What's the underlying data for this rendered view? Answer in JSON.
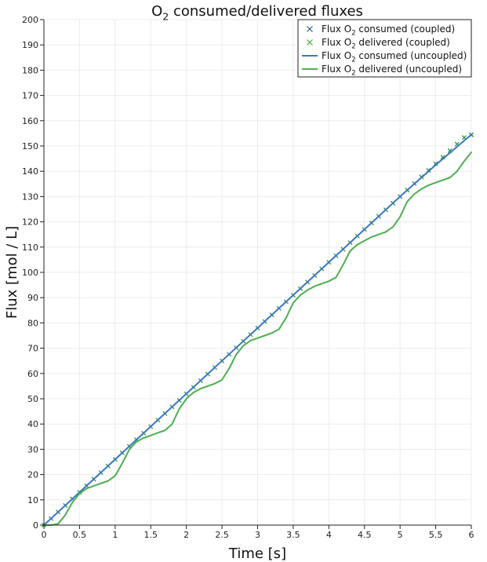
{
  "chart_data": {
    "type": "line",
    "title": "O<sub>2</sub> consumed/delivered fluxes",
    "title_parts": {
      "pre": "O",
      "sub": "2",
      "post": " consumed/delivered fluxes"
    },
    "xlabel": "Time [s]",
    "ylabel": "Flux [mol / L]",
    "xlim": [
      0,
      6
    ],
    "ylim": [
      0,
      200
    ],
    "xticks": [
      0,
      0.5,
      1,
      1.5,
      2,
      2.5,
      3,
      3.5,
      4,
      4.5,
      5,
      5.5,
      6
    ],
    "xtick_labels": [
      "0",
      "0.5",
      "1",
      "1.5",
      "2",
      "2.5",
      "3",
      "3.5",
      "4",
      "4.5",
      "5",
      "5.5",
      "6"
    ],
    "yticks": [
      0,
      10,
      20,
      30,
      40,
      50,
      60,
      70,
      80,
      90,
      100,
      110,
      120,
      130,
      140,
      150,
      160,
      170,
      180,
      190,
      200
    ],
    "ytick_labels": [
      "0",
      "10",
      "20",
      "30",
      "40",
      "50",
      "60",
      "70",
      "80",
      "90",
      "100",
      "110",
      "120",
      "130",
      "140",
      "150",
      "160",
      "170",
      "180",
      "190",
      "200"
    ],
    "grid": true,
    "legend_position": "top-right",
    "series": [
      {
        "name": "Flux O2 consumed (coupled)",
        "name_parts": {
          "pre": "Flux O",
          "sub": "2",
          "post": " consumed (coupled)"
        },
        "style": "marker-x",
        "color": "#1f4e79",
        "x": [
          0,
          0.1,
          0.2,
          0.3,
          0.4,
          0.5,
          0.6,
          0.7,
          0.8,
          0.9,
          1.0,
          1.1,
          1.2,
          1.3,
          1.4,
          1.5,
          1.6,
          1.7,
          1.8,
          1.9,
          2.0,
          2.1,
          2.2,
          2.3,
          2.4,
          2.5,
          2.6,
          2.7,
          2.8,
          2.9,
          3.0,
          3.1,
          3.2,
          3.3,
          3.4,
          3.5,
          3.6,
          3.7,
          3.8,
          3.9,
          4.0,
          4.1,
          4.2,
          4.3,
          4.4,
          4.5,
          4.6,
          4.7,
          4.8,
          4.9,
          5.0,
          5.1,
          5.2,
          5.3,
          5.4,
          5.5,
          5.6,
          5.7,
          5.8,
          5.9,
          6.0
        ],
        "y": [
          0,
          2.6,
          5.2,
          7.8,
          10.4,
          13.0,
          15.6,
          18.2,
          20.8,
          23.4,
          26.0,
          28.6,
          31.2,
          33.8,
          36.4,
          39.0,
          41.6,
          44.2,
          46.8,
          49.4,
          52.0,
          54.6,
          57.2,
          59.8,
          62.4,
          65.0,
          67.6,
          70.2,
          72.8,
          75.4,
          78.0,
          80.6,
          83.2,
          85.8,
          88.4,
          91.0,
          93.6,
          96.2,
          98.8,
          101.4,
          104.0,
          106.6,
          109.2,
          111.8,
          114.4,
          117.0,
          119.6,
          122.2,
          124.8,
          127.4,
          130.0,
          132.6,
          135.2,
          137.8,
          140.4,
          143.0,
          145.6,
          148.2,
          150.8,
          153.4,
          154.5
        ]
      },
      {
        "name": "Flux O2 delivered (coupled)",
        "name_parts": {
          "pre": "Flux O",
          "sub": "2",
          "post": " delivered (coupled)"
        },
        "style": "marker-x",
        "color": "#2ca02c",
        "x": [
          0,
          0.1,
          0.2,
          0.3,
          0.4,
          0.5,
          0.6,
          0.7,
          0.8,
          0.9,
          1.0,
          1.1,
          1.2,
          1.3,
          1.4,
          1.5,
          1.6,
          1.7,
          1.8,
          1.9,
          2.0,
          2.1,
          2.2,
          2.3,
          2.4,
          2.5,
          2.6,
          2.7,
          2.8,
          2.9,
          3.0,
          3.1,
          3.2,
          3.3,
          3.4,
          3.5,
          3.6,
          3.7,
          3.8,
          3.9,
          4.0,
          4.1,
          4.2,
          4.3,
          4.4,
          4.5,
          4.6,
          4.7,
          4.8,
          4.9,
          5.0,
          5.1,
          5.2,
          5.3,
          5.4,
          5.5,
          5.6,
          5.7,
          5.8,
          5.9,
          6.0
        ],
        "y": [
          0,
          2.5,
          5.1,
          7.7,
          10.3,
          12.9,
          15.5,
          18.1,
          20.7,
          23.3,
          25.9,
          28.5,
          31.1,
          33.7,
          36.3,
          38.9,
          41.5,
          44.1,
          46.7,
          49.3,
          51.9,
          54.5,
          57.1,
          59.7,
          62.3,
          64.9,
          67.5,
          70.1,
          72.7,
          75.3,
          77.9,
          80.5,
          83.1,
          85.7,
          88.3,
          90.9,
          93.5,
          96.1,
          98.7,
          101.3,
          103.9,
          106.5,
          109.1,
          111.7,
          114.3,
          116.9,
          119.5,
          122.1,
          124.7,
          127.3,
          129.9,
          132.5,
          135.1,
          137.7,
          140.3,
          142.9,
          145.5,
          148.1,
          150.7,
          153.3,
          154.3
        ]
      },
      {
        "name": "Flux O2 consumed (uncoupled)",
        "name_parts": {
          "pre": "Flux O",
          "sub": "2",
          "post": " consumed (uncoupled)"
        },
        "style": "line",
        "color": "#3a75c4",
        "x": [
          0,
          0.5,
          1.0,
          1.5,
          2.0,
          2.5,
          3.0,
          3.5,
          4.0,
          4.5,
          5.0,
          5.5,
          6.0
        ],
        "y": [
          0,
          13.0,
          26.0,
          39.0,
          52.0,
          65.0,
          78.0,
          91.0,
          104.0,
          117.0,
          130.0,
          142.5,
          154.5
        ]
      },
      {
        "name": "Flux O2 delivered (uncoupled)",
        "name_parts": {
          "pre": "Flux O",
          "sub": "2",
          "post": " delivered (uncoupled)"
        },
        "style": "line",
        "color": "#4caf50",
        "x": [
          0,
          0.1,
          0.2,
          0.3,
          0.4,
          0.5,
          0.6,
          0.7,
          0.8,
          0.9,
          1.0,
          1.1,
          1.2,
          1.3,
          1.4,
          1.5,
          1.6,
          1.7,
          1.8,
          1.9,
          2.0,
          2.1,
          2.2,
          2.3,
          2.4,
          2.5,
          2.6,
          2.7,
          2.8,
          2.9,
          3.0,
          3.1,
          3.2,
          3.3,
          3.4,
          3.5,
          3.6,
          3.7,
          3.8,
          3.9,
          4.0,
          4.1,
          4.2,
          4.3,
          4.4,
          4.5,
          4.6,
          4.7,
          4.8,
          4.9,
          5.0,
          5.1,
          5.2,
          5.3,
          5.4,
          5.5,
          5.6,
          5.7,
          5.8,
          5.9,
          6.0
        ],
        "y": [
          0,
          0,
          0.5,
          4,
          9,
          12.5,
          14.5,
          15.5,
          16.5,
          17.5,
          19.5,
          24.5,
          30,
          33,
          34.5,
          35.5,
          36.5,
          37.5,
          40,
          46,
          50,
          52.5,
          54,
          55,
          56,
          57.5,
          62,
          67.5,
          71,
          73,
          74,
          75,
          76,
          77.5,
          82,
          88,
          91,
          93,
          94.5,
          95.5,
          96.5,
          98,
          103,
          108.5,
          111,
          112.5,
          114,
          115,
          116,
          118,
          122,
          128,
          131,
          133,
          134.5,
          135.5,
          136.5,
          137.5,
          140,
          144,
          147.5
        ]
      }
    ]
  }
}
